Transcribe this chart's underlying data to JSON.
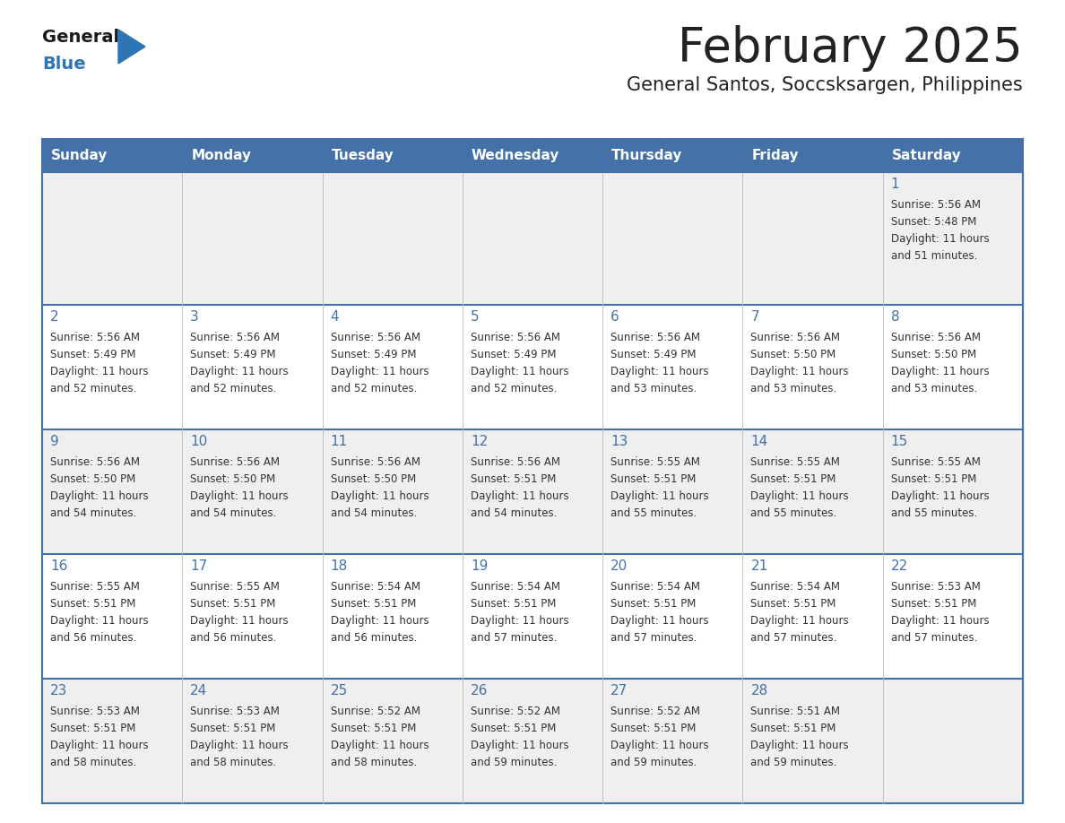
{
  "title": "February 2025",
  "subtitle": "General Santos, Soccsksargen, Philippines",
  "header_bg": "#4472A8",
  "header_text": "#FFFFFF",
  "row_bg_light": "#EFEFEF",
  "row_bg_white": "#FFFFFF",
  "border_color": "#4472A8",
  "text_color": "#333333",
  "day_num_color": "#4472A8",
  "day_headers": [
    "Sunday",
    "Monday",
    "Tuesday",
    "Wednesday",
    "Thursday",
    "Friday",
    "Saturday"
  ],
  "logo_general_color": "#1a1a1a",
  "logo_blue_color": "#2E75B6",
  "logo_triangle_color": "#2E75B6",
  "cell_data": [
    [
      null,
      null,
      null,
      null,
      null,
      null,
      {
        "day": 1,
        "sunrise": "5:56 AM",
        "sunset": "5:48 PM",
        "daylight": "11 hours\nand 51 minutes."
      }
    ],
    [
      {
        "day": 2,
        "sunrise": "5:56 AM",
        "sunset": "5:49 PM",
        "daylight": "11 hours\nand 52 minutes."
      },
      {
        "day": 3,
        "sunrise": "5:56 AM",
        "sunset": "5:49 PM",
        "daylight": "11 hours\nand 52 minutes."
      },
      {
        "day": 4,
        "sunrise": "5:56 AM",
        "sunset": "5:49 PM",
        "daylight": "11 hours\nand 52 minutes."
      },
      {
        "day": 5,
        "sunrise": "5:56 AM",
        "sunset": "5:49 PM",
        "daylight": "11 hours\nand 52 minutes."
      },
      {
        "day": 6,
        "sunrise": "5:56 AM",
        "sunset": "5:49 PM",
        "daylight": "11 hours\nand 53 minutes."
      },
      {
        "day": 7,
        "sunrise": "5:56 AM",
        "sunset": "5:50 PM",
        "daylight": "11 hours\nand 53 minutes."
      },
      {
        "day": 8,
        "sunrise": "5:56 AM",
        "sunset": "5:50 PM",
        "daylight": "11 hours\nand 53 minutes."
      }
    ],
    [
      {
        "day": 9,
        "sunrise": "5:56 AM",
        "sunset": "5:50 PM",
        "daylight": "11 hours\nand 54 minutes."
      },
      {
        "day": 10,
        "sunrise": "5:56 AM",
        "sunset": "5:50 PM",
        "daylight": "11 hours\nand 54 minutes."
      },
      {
        "day": 11,
        "sunrise": "5:56 AM",
        "sunset": "5:50 PM",
        "daylight": "11 hours\nand 54 minutes."
      },
      {
        "day": 12,
        "sunrise": "5:56 AM",
        "sunset": "5:51 PM",
        "daylight": "11 hours\nand 54 minutes."
      },
      {
        "day": 13,
        "sunrise": "5:55 AM",
        "sunset": "5:51 PM",
        "daylight": "11 hours\nand 55 minutes."
      },
      {
        "day": 14,
        "sunrise": "5:55 AM",
        "sunset": "5:51 PM",
        "daylight": "11 hours\nand 55 minutes."
      },
      {
        "day": 15,
        "sunrise": "5:55 AM",
        "sunset": "5:51 PM",
        "daylight": "11 hours\nand 55 minutes."
      }
    ],
    [
      {
        "day": 16,
        "sunrise": "5:55 AM",
        "sunset": "5:51 PM",
        "daylight": "11 hours\nand 56 minutes."
      },
      {
        "day": 17,
        "sunrise": "5:55 AM",
        "sunset": "5:51 PM",
        "daylight": "11 hours\nand 56 minutes."
      },
      {
        "day": 18,
        "sunrise": "5:54 AM",
        "sunset": "5:51 PM",
        "daylight": "11 hours\nand 56 minutes."
      },
      {
        "day": 19,
        "sunrise": "5:54 AM",
        "sunset": "5:51 PM",
        "daylight": "11 hours\nand 57 minutes."
      },
      {
        "day": 20,
        "sunrise": "5:54 AM",
        "sunset": "5:51 PM",
        "daylight": "11 hours\nand 57 minutes."
      },
      {
        "day": 21,
        "sunrise": "5:54 AM",
        "sunset": "5:51 PM",
        "daylight": "11 hours\nand 57 minutes."
      },
      {
        "day": 22,
        "sunrise": "5:53 AM",
        "sunset": "5:51 PM",
        "daylight": "11 hours\nand 57 minutes."
      }
    ],
    [
      {
        "day": 23,
        "sunrise": "5:53 AM",
        "sunset": "5:51 PM",
        "daylight": "11 hours\nand 58 minutes."
      },
      {
        "day": 24,
        "sunrise": "5:53 AM",
        "sunset": "5:51 PM",
        "daylight": "11 hours\nand 58 minutes."
      },
      {
        "day": 25,
        "sunrise": "5:52 AM",
        "sunset": "5:51 PM",
        "daylight": "11 hours\nand 58 minutes."
      },
      {
        "day": 26,
        "sunrise": "5:52 AM",
        "sunset": "5:51 PM",
        "daylight": "11 hours\nand 59 minutes."
      },
      {
        "day": 27,
        "sunrise": "5:52 AM",
        "sunset": "5:51 PM",
        "daylight": "11 hours\nand 59 minutes."
      },
      {
        "day": 28,
        "sunrise": "5:51 AM",
        "sunset": "5:51 PM",
        "daylight": "11 hours\nand 59 minutes."
      },
      null
    ]
  ]
}
